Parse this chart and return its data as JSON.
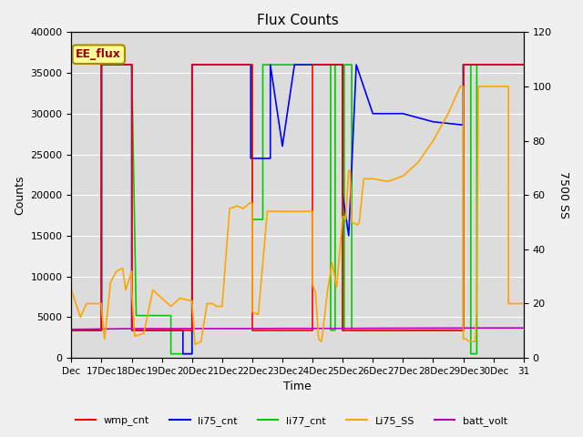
{
  "title": "Flux Counts",
  "xlabel": "Time",
  "ylabel_left": "Counts",
  "ylabel_right": "7500 SS",
  "ylim_left": [
    0,
    40000
  ],
  "ylim_right": [
    0,
    120
  ],
  "fig_facecolor": "#f0f0f0",
  "plot_bg_color": "#dcdcdc",
  "annotation_text": "EE_flux",
  "annotation_bg": "#ffff99",
  "annotation_border": "#aa8800",
  "annotation_text_color": "#990000",
  "series_order": [
    "li77_cnt",
    "li75_cnt",
    "wmp_cnt",
    "Li75_SS",
    "batt_volt"
  ],
  "series": {
    "wmp_cnt": {
      "color": "#ff0000",
      "lw": 1.2,
      "axis": "left",
      "points": [
        [
          16.0,
          3400
        ],
        [
          17.0,
          3400
        ],
        [
          17.0,
          36000
        ],
        [
          18.0,
          36000
        ],
        [
          18.0,
          3400
        ],
        [
          20.0,
          3400
        ],
        [
          20.0,
          36000
        ],
        [
          21.9,
          36000
        ],
        [
          21.9,
          36000
        ],
        [
          22.0,
          36000
        ],
        [
          22.0,
          3400
        ],
        [
          24.0,
          3400
        ],
        [
          24.0,
          36000
        ],
        [
          25.0,
          36000
        ],
        [
          25.0,
          3400
        ],
        [
          29.0,
          3400
        ],
        [
          29.0,
          36000
        ],
        [
          31.0,
          36000
        ]
      ]
    },
    "li75_cnt": {
      "color": "#0000ff",
      "lw": 1.2,
      "axis": "left",
      "points": [
        [
          16.0,
          3400
        ],
        [
          17.0,
          3400
        ],
        [
          17.0,
          36000
        ],
        [
          18.0,
          36000
        ],
        [
          18.0,
          3400
        ],
        [
          19.7,
          3400
        ],
        [
          19.7,
          500
        ],
        [
          20.0,
          500
        ],
        [
          20.0,
          36000
        ],
        [
          21.95,
          36000
        ],
        [
          21.95,
          24500
        ],
        [
          22.6,
          24500
        ],
        [
          22.6,
          36000
        ],
        [
          23.0,
          26000
        ],
        [
          23.4,
          36000
        ],
        [
          24.0,
          36000
        ],
        [
          24.0,
          36000
        ],
        [
          25.0,
          36000
        ],
        [
          25.0,
          20000
        ],
        [
          25.2,
          15000
        ],
        [
          25.45,
          36000
        ],
        [
          26.0,
          30000
        ],
        [
          26.5,
          30000
        ],
        [
          27.0,
          30000
        ],
        [
          27.5,
          29500
        ],
        [
          28.0,
          29000
        ],
        [
          28.5,
          28800
        ],
        [
          29.0,
          28600
        ],
        [
          29.0,
          36000
        ],
        [
          31.0,
          36000
        ]
      ]
    },
    "li77_cnt": {
      "color": "#00cc00",
      "lw": 1.2,
      "axis": "left",
      "points": [
        [
          16.0,
          3400
        ],
        [
          17.0,
          3400
        ],
        [
          17.0,
          36000
        ],
        [
          18.0,
          36000
        ],
        [
          18.0,
          36000
        ],
        [
          18.15,
          5200
        ],
        [
          19.3,
          5200
        ],
        [
          19.3,
          500
        ],
        [
          20.0,
          500
        ],
        [
          20.0,
          36000
        ],
        [
          21.9,
          36000
        ],
        [
          22.0,
          36000
        ],
        [
          22.0,
          17000
        ],
        [
          22.35,
          17000
        ],
        [
          22.35,
          36000
        ],
        [
          24.0,
          36000
        ],
        [
          24.0,
          36000
        ],
        [
          24.6,
          36000
        ],
        [
          24.6,
          3400
        ],
        [
          24.75,
          3400
        ],
        [
          24.75,
          36000
        ],
        [
          25.0,
          36000
        ],
        [
          25.0,
          3400
        ],
        [
          25.05,
          3400
        ],
        [
          25.05,
          36000
        ],
        [
          25.3,
          36000
        ],
        [
          25.3,
          3400
        ],
        [
          29.0,
          3400
        ],
        [
          29.0,
          36000
        ],
        [
          29.25,
          36000
        ],
        [
          29.25,
          500
        ],
        [
          29.45,
          500
        ],
        [
          29.45,
          36000
        ],
        [
          31.0,
          36000
        ]
      ]
    },
    "Li75_SS": {
      "color": "#ffa500",
      "lw": 1.2,
      "axis": "right",
      "points": [
        [
          16.0,
          25
        ],
        [
          16.3,
          15
        ],
        [
          16.5,
          20
        ],
        [
          17.0,
          20
        ],
        [
          17.0,
          18
        ],
        [
          17.1,
          7
        ],
        [
          17.3,
          28
        ],
        [
          17.5,
          32
        ],
        [
          17.7,
          33
        ],
        [
          17.8,
          25
        ],
        [
          18.0,
          32
        ],
        [
          18.0,
          25
        ],
        [
          18.1,
          8
        ],
        [
          18.4,
          9
        ],
        [
          18.7,
          25
        ],
        [
          19.0,
          22
        ],
        [
          19.3,
          19
        ],
        [
          19.6,
          22
        ],
        [
          20.0,
          21
        ],
        [
          20.1,
          5
        ],
        [
          20.3,
          6
        ],
        [
          20.5,
          20
        ],
        [
          20.7,
          20
        ],
        [
          20.8,
          19
        ],
        [
          21.0,
          19
        ],
        [
          21.25,
          55
        ],
        [
          21.5,
          56
        ],
        [
          21.7,
          55
        ],
        [
          21.9,
          57
        ],
        [
          22.0,
          57
        ],
        [
          22.0,
          17
        ],
        [
          22.2,
          16
        ],
        [
          22.5,
          54
        ],
        [
          23.0,
          54
        ],
        [
          23.5,
          54
        ],
        [
          24.0,
          54
        ],
        [
          24.0,
          27
        ],
        [
          24.1,
          24
        ],
        [
          24.2,
          7
        ],
        [
          24.3,
          6
        ],
        [
          24.5,
          25
        ],
        [
          24.65,
          35
        ],
        [
          24.8,
          26
        ],
        [
          25.0,
          52
        ],
        [
          25.05,
          52
        ],
        [
          25.1,
          51
        ],
        [
          25.2,
          69
        ],
        [
          25.25,
          69
        ],
        [
          25.3,
          50
        ],
        [
          25.5,
          49
        ],
        [
          25.55,
          50
        ],
        [
          25.7,
          66
        ],
        [
          26.0,
          66
        ],
        [
          26.5,
          65
        ],
        [
          27.0,
          67
        ],
        [
          27.5,
          72
        ],
        [
          28.0,
          80
        ],
        [
          28.5,
          90
        ],
        [
          28.9,
          100
        ],
        [
          29.0,
          100
        ],
        [
          29.0,
          7
        ],
        [
          29.1,
          7
        ],
        [
          29.2,
          6
        ],
        [
          29.4,
          6
        ],
        [
          29.45,
          20
        ],
        [
          29.5,
          100
        ],
        [
          30.0,
          100
        ],
        [
          30.5,
          100
        ],
        [
          30.5,
          20
        ],
        [
          31.0,
          20
        ]
      ]
    },
    "batt_volt": {
      "color": "#bb00bb",
      "lw": 1.2,
      "axis": "left",
      "points": [
        [
          16.0,
          3500
        ],
        [
          17.0,
          3550
        ],
        [
          18.0,
          3600
        ],
        [
          19.0,
          3600
        ],
        [
          20.0,
          3600
        ],
        [
          21.0,
          3600
        ],
        [
          22.0,
          3600
        ],
        [
          23.0,
          3620
        ],
        [
          24.0,
          3620
        ],
        [
          25.0,
          3620
        ],
        [
          26.0,
          3640
        ],
        [
          27.0,
          3650
        ],
        [
          28.0,
          3660
        ],
        [
          29.0,
          3670
        ],
        [
          30.0,
          3680
        ],
        [
          31.0,
          3680
        ]
      ]
    }
  },
  "legend": [
    {
      "label": "wmp_cnt",
      "color": "#ff0000"
    },
    {
      "label": "li75_cnt",
      "color": "#0000ff"
    },
    {
      "label": "li77_cnt",
      "color": "#00cc00"
    },
    {
      "label": "Li75_SS",
      "color": "#ffa500"
    },
    {
      "label": "batt_volt",
      "color": "#bb00bb"
    }
  ],
  "xtick_labels": [
    "Dec",
    "17Dec",
    "18Dec",
    "19Dec",
    "20Dec",
    "21Dec",
    "22Dec",
    "23Dec",
    "24Dec",
    "25Dec",
    "26Dec",
    "27Dec",
    "28Dec",
    "29Dec",
    "30Dec",
    "31"
  ],
  "xtick_positions": [
    16,
    17,
    18,
    19,
    20,
    21,
    22,
    23,
    24,
    25,
    26,
    27,
    28,
    29,
    30,
    31
  ],
  "yticks_left": [
    0,
    5000,
    10000,
    15000,
    20000,
    25000,
    30000,
    35000,
    40000
  ],
  "yticks_right": [
    0,
    20,
    40,
    60,
    80,
    100,
    120
  ]
}
